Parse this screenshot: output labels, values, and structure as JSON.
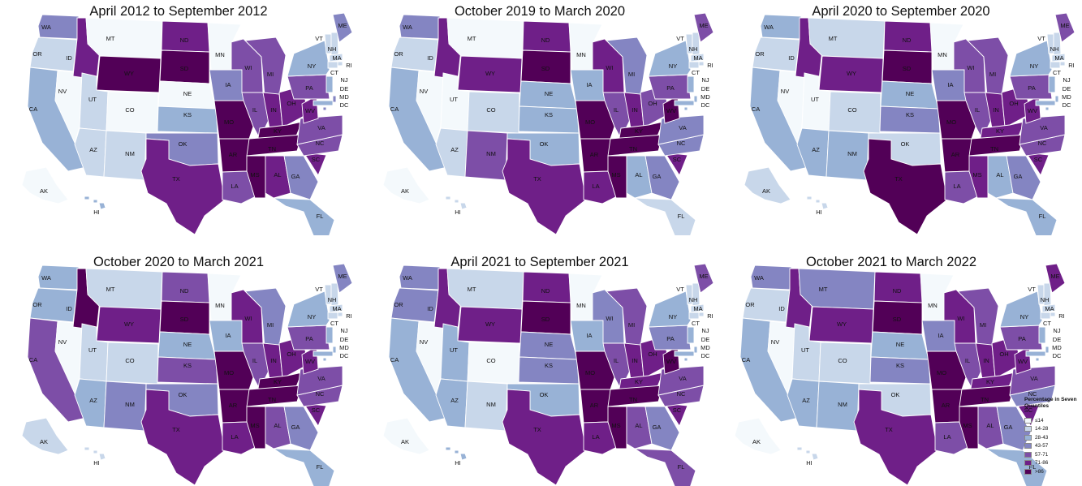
{
  "legend": {
    "title": "Percentage in Seven Quantiles",
    "bins": [
      {
        "label": "≤14",
        "color": "#f4f9fc"
      },
      {
        "label": "14-28",
        "color": "#c8d7ea"
      },
      {
        "label": "28-43",
        "color": "#98b2d6"
      },
      {
        "label": "43-57",
        "color": "#8485c2"
      },
      {
        "label": "57-71",
        "color": "#7d4ea7"
      },
      {
        "label": "71-86",
        "color": "#6f1f88"
      },
      {
        "label": ">86",
        "color": "#520057"
      }
    ]
  },
  "maps": [
    {
      "title": "April 2012 to September 2012",
      "bins": {
        "WA": 3,
        "OR": 1,
        "CA": 2,
        "NV": 0,
        "ID": 5,
        "MT": 0,
        "WY": 6,
        "UT": 1,
        "CO": 0,
        "AZ": 1,
        "NM": 1,
        "ND": 5,
        "SD": 6,
        "NE": 0,
        "KS": 2,
        "OK": 3,
        "TX": 5,
        "MN": 0,
        "IA": 3,
        "MO": 6,
        "AR": 6,
        "LA": 4,
        "WI": 4,
        "IL": 4,
        "MI": 4,
        "IN": 5,
        "OH": 5,
        "KY": 6,
        "TN": 6,
        "MS": 6,
        "AL": 5,
        "GA": 3,
        "FL": 2,
        "SC": 5,
        "NC": 4,
        "VA": 4,
        "WV": 5,
        "PA": 4,
        "NY": 2,
        "ME": 3,
        "VT": 1,
        "NH": 1,
        "MA": 1,
        "RI": 1,
        "CT": 1,
        "NJ": 2,
        "DE": 3,
        "MD": 2,
        "DC": 3,
        "AK": 0,
        "HI": 2
      }
    },
    {
      "title": "October 2019 to March 2020",
      "bins": {
        "WA": 3,
        "OR": 1,
        "CA": 2,
        "NV": 0,
        "ID": 5,
        "MT": 0,
        "WY": 5,
        "UT": 0,
        "CO": 1,
        "AZ": 1,
        "NM": 4,
        "ND": 5,
        "SD": 6,
        "NE": 2,
        "KS": 2,
        "OK": 2,
        "TX": 5,
        "MN": 0,
        "IA": 2,
        "MO": 6,
        "AR": 6,
        "LA": 5,
        "WI": 5,
        "IL": 4,
        "MI": 3,
        "IN": 5,
        "OH": 4,
        "KY": 6,
        "TN": 6,
        "MS": 6,
        "AL": 2,
        "GA": 3,
        "FL": 1,
        "SC": 5,
        "NC": 3,
        "VA": 3,
        "WV": 6,
        "PA": 4,
        "NY": 2,
        "ME": 4,
        "VT": 1,
        "NH": 1,
        "MA": 1,
        "RI": 1,
        "CT": 1,
        "NJ": 2,
        "DE": 2,
        "MD": 2,
        "DC": 2,
        "AK": 0,
        "HI": 1
      }
    },
    {
      "title": "April 2020 to September 2020",
      "bins": {
        "WA": 2,
        "OR": 1,
        "CA": 2,
        "NV": 0,
        "ID": 5,
        "MT": 1,
        "WY": 5,
        "UT": 0,
        "CO": 1,
        "AZ": 2,
        "NM": 2,
        "ND": 5,
        "SD": 6,
        "NE": 2,
        "KS": 3,
        "OK": 1,
        "TX": 6,
        "MN": 0,
        "IA": 3,
        "MO": 6,
        "AR": 6,
        "LA": 4,
        "WI": 4,
        "IL": 4,
        "MI": 4,
        "IN": 5,
        "OH": 5,
        "KY": 5,
        "TN": 6,
        "MS": 5,
        "AL": 2,
        "GA": 3,
        "FL": 2,
        "SC": 5,
        "NC": 4,
        "VA": 4,
        "WV": 5,
        "PA": 4,
        "NY": 2,
        "ME": 4,
        "VT": 1,
        "NH": 1,
        "MA": 1,
        "RI": 1,
        "CT": 1,
        "NJ": 2,
        "DE": 2,
        "MD": 2,
        "DC": 2,
        "AK": 1,
        "HI": 1
      }
    },
    {
      "title": "October 2020 to March 2021",
      "bins": {
        "WA": 2,
        "OR": 2,
        "CA": 4,
        "NV": 0,
        "ID": 6,
        "MT": 1,
        "WY": 5,
        "UT": 1,
        "CO": 1,
        "AZ": 2,
        "NM": 3,
        "ND": 4,
        "SD": 6,
        "NE": 2,
        "KS": 4,
        "OK": 3,
        "TX": 5,
        "MN": 0,
        "IA": 2,
        "MO": 6,
        "AR": 6,
        "LA": 5,
        "WI": 5,
        "IL": 4,
        "MI": 3,
        "IN": 5,
        "OH": 5,
        "KY": 6,
        "TN": 6,
        "MS": 6,
        "AL": 4,
        "GA": 3,
        "FL": 2,
        "SC": 5,
        "NC": 4,
        "VA": 4,
        "WV": 5,
        "PA": 4,
        "NY": 2,
        "ME": 3,
        "VT": 1,
        "NH": 1,
        "MA": 1,
        "RI": 1,
        "CT": 1,
        "NJ": 2,
        "DE": 2,
        "MD": 2,
        "DC": 2,
        "AK": 1,
        "HI": 1
      }
    },
    {
      "title": "April 2021 to September 2021",
      "bins": {
        "WA": 3,
        "OR": 3,
        "CA": 2,
        "NV": 0,
        "ID": 5,
        "MT": 1,
        "WY": 5,
        "UT": 2,
        "CO": 0,
        "AZ": 2,
        "NM": 1,
        "ND": 5,
        "SD": 6,
        "NE": 3,
        "KS": 3,
        "OK": 2,
        "TX": 5,
        "MN": 0,
        "IA": 2,
        "MO": 6,
        "AR": 6,
        "LA": 5,
        "WI": 3,
        "IL": 4,
        "MI": 4,
        "IN": 5,
        "OH": 5,
        "KY": 5,
        "TN": 6,
        "MS": 6,
        "AL": 4,
        "GA": 3,
        "FL": 4,
        "SC": 5,
        "NC": 4,
        "VA": 4,
        "WV": 6,
        "PA": 3,
        "NY": 2,
        "ME": 4,
        "VT": 1,
        "NH": 1,
        "MA": 1,
        "RI": 1,
        "CT": 1,
        "NJ": 2,
        "DE": 2,
        "MD": 2,
        "DC": 2,
        "AK": 0,
        "HI": 2
      }
    },
    {
      "title": "October 2021 to March 2022",
      "bins": {
        "WA": 3,
        "OR": 1,
        "CA": 2,
        "NV": 0,
        "ID": 5,
        "MT": 3,
        "WY": 5,
        "UT": 1,
        "CO": 1,
        "AZ": 2,
        "NM": 2,
        "ND": 5,
        "SD": 6,
        "NE": 2,
        "KS": 3,
        "OK": 1,
        "TX": 5,
        "MN": 0,
        "IA": 3,
        "MO": 6,
        "AR": 6,
        "LA": 4,
        "WI": 5,
        "IL": 4,
        "MI": 4,
        "IN": 5,
        "OH": 5,
        "KY": 5,
        "TN": 6,
        "MS": 6,
        "AL": 4,
        "GA": 3,
        "FL": 2,
        "SC": 5,
        "NC": 3,
        "VA": 4,
        "WV": 5,
        "PA": 4,
        "NY": 2,
        "ME": 5,
        "VT": 1,
        "NH": 1,
        "MA": 1,
        "RI": 1,
        "CT": 1,
        "NJ": 2,
        "DE": 2,
        "MD": 2,
        "DC": 2,
        "AK": 0,
        "HI": 1
      }
    }
  ]
}
